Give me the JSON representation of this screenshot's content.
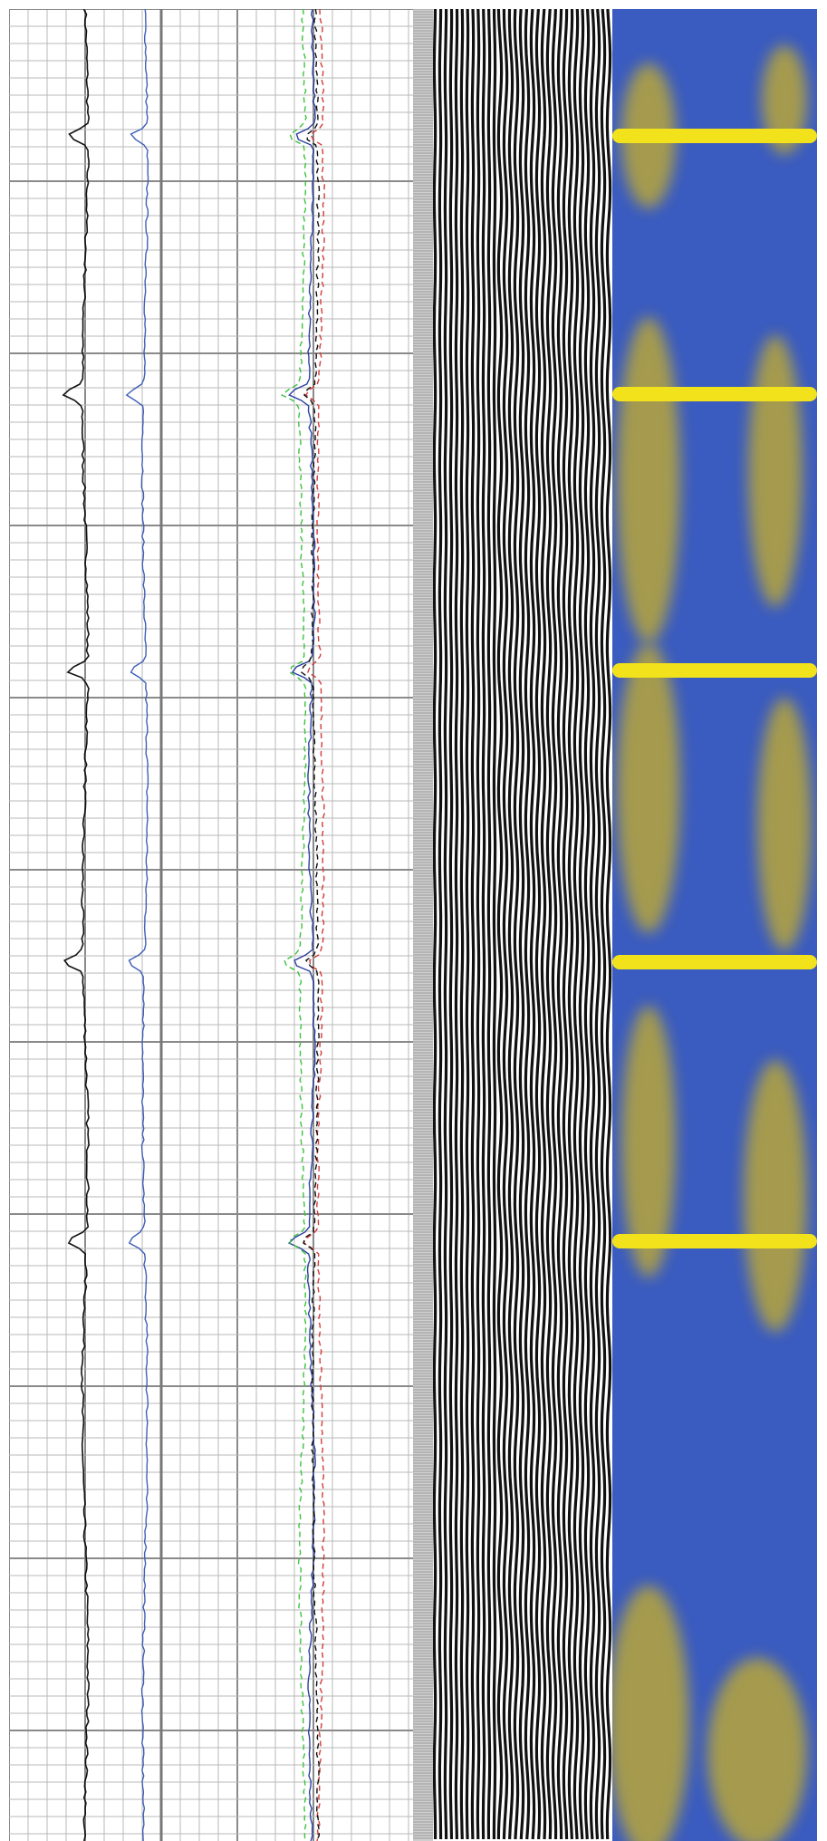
{
  "log": {
    "tracks": [
      {
        "id": "track-1",
        "curve_color": "#111111",
        "style": "solid"
      },
      {
        "id": "track-2",
        "curve_color": "#3f5fb8",
        "style": "solid"
      },
      {
        "id": "track-3",
        "curves": [
          {
            "color": "#2a3fa0",
            "style": "solid"
          },
          {
            "color": "#3cc23c",
            "style": "dashed"
          },
          {
            "color": "#d23a3a",
            "style": "dashed"
          },
          {
            "color": "#111111",
            "style": "dashed"
          }
        ]
      }
    ],
    "collar_count": 5,
    "colors": {
      "grid_line": "#b8b8b8",
      "grid_major": "#8a8a8a",
      "vdl_ink": "#111111",
      "image_background": "#3a5bc0",
      "collar_band": "#f2e21c",
      "image_shadow": "#b8a63a"
    }
  }
}
